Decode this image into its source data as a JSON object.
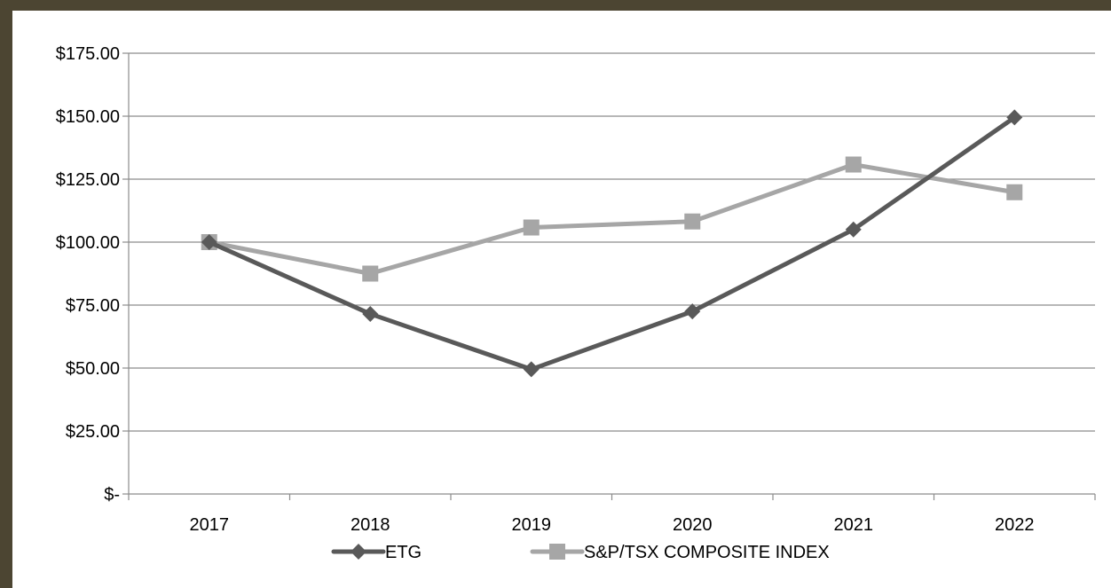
{
  "chart_data": {
    "type": "line",
    "title": "",
    "xlabel": "",
    "ylabel": "",
    "categories": [
      "2017",
      "2018",
      "2019",
      "2020",
      "2021",
      "2022"
    ],
    "ylim": [
      0,
      175
    ],
    "yticks": [
      0,
      25,
      50,
      75,
      100,
      125,
      150,
      175
    ],
    "ytick_labels": [
      "$-",
      "$25.00",
      "$50.00",
      "$75.00",
      "$100.00",
      "$125.00",
      "$150.00",
      "$175.00"
    ],
    "grid": "horizontal",
    "legend_position": "bottom",
    "series": [
      {
        "name": "ETG",
        "values": [
          100.0,
          71.5,
          49.5,
          72.5,
          105.0,
          149.5
        ],
        "color": "#595959",
        "marker": "diamond"
      },
      {
        "name": "S&P/TSX COMPOSITE INDEX",
        "values": [
          100.0,
          87.5,
          105.8,
          108.2,
          130.8,
          119.8
        ],
        "color": "#a6a6a6",
        "marker": "square"
      }
    ]
  }
}
